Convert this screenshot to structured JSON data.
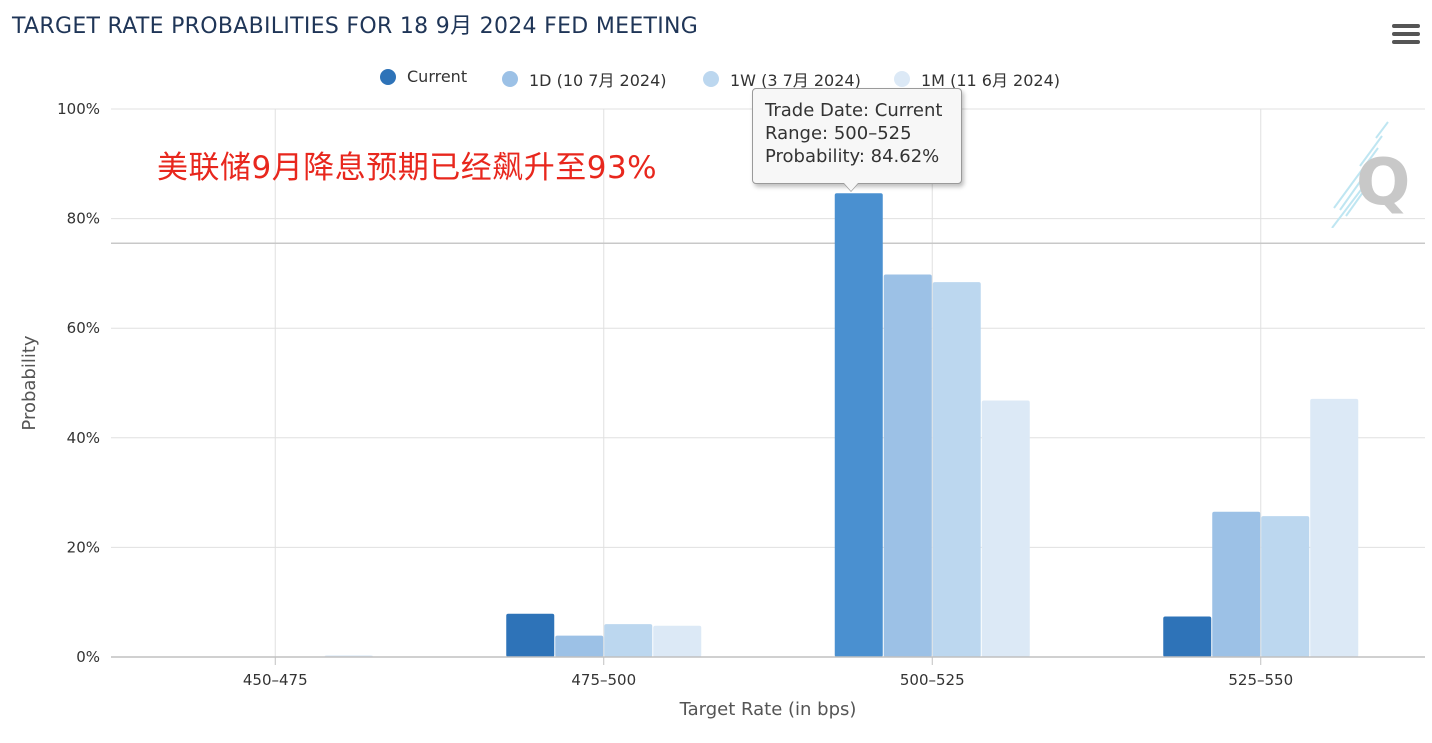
{
  "page": {
    "title": "TARGET RATE PROBABILITIES FOR 18 9月 2024 FED MEETING",
    "annotation": "美联储9月降息预期已经飙升至93%"
  },
  "toolbar": {
    "menu_icon": "hamburger-menu-icon"
  },
  "tooltip": {
    "line1": "Trade Date: Current",
    "line2": "Range: 500–525",
    "line3": "Probability: 84.62%"
  },
  "chart_data": {
    "type": "bar",
    "xlabel": "Target Rate (in bps)",
    "ylabel": "Probability",
    "ylim": [
      0,
      100
    ],
    "yticks": [
      "0%",
      "20%",
      "40%",
      "60%",
      "80%",
      "100%"
    ],
    "categories": [
      "450–475",
      "475–500",
      "500–525",
      "525–550"
    ],
    "series": [
      {
        "name": "Current",
        "color": "#2e73b8",
        "values": [
          0,
          7.9,
          84.62,
          7.4
        ]
      },
      {
        "name": "1D (10 7月 2024)",
        "color": "#9cc1e6",
        "values": [
          0,
          3.9,
          69.8,
          26.5
        ]
      },
      {
        "name": "1W (3 7月 2024)",
        "color": "#bcd7ef",
        "values": [
          0,
          6.0,
          68.4,
          25.7
        ]
      },
      {
        "name": "1M (11 6月 2024)",
        "color": "#dce9f6",
        "values": [
          0.3,
          5.7,
          46.8,
          47.1
        ]
      }
    ],
    "highlighted": {
      "category": "500–525",
      "series": "Current",
      "color": "#4a90d0"
    },
    "reference_line": {
      "value": 75.5
    },
    "legend_position": "top-center",
    "grid": true
  }
}
